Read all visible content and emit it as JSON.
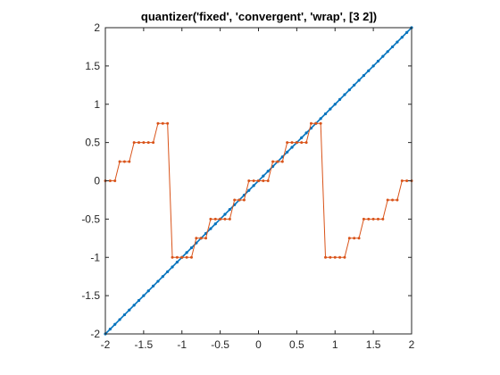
{
  "chart_data": {
    "type": "line",
    "title": "quantizer('fixed', 'convergent', 'wrap', [3  2])",
    "xlabel": "",
    "ylabel": "",
    "xlim": [
      -2,
      2
    ],
    "ylim": [
      -2,
      2
    ],
    "xticks": [
      -2,
      -1.5,
      -1,
      -0.5,
      0,
      0.5,
      1,
      1.5,
      2
    ],
    "yticks": [
      -2,
      -1.5,
      -1,
      -0.5,
      0,
      0.5,
      1,
      1.5,
      2
    ],
    "xtick_labels": [
      "-2",
      "-1.5",
      "-1",
      "-0.5",
      "0",
      "0.5",
      "1",
      "1.5",
      "2"
    ],
    "ytick_labels": [
      "-2",
      "-1.5",
      "-1",
      "-0.5",
      "0",
      "0.5",
      "1",
      "1.5",
      "2"
    ],
    "x_step": 0.0625,
    "series": [
      {
        "kind": "identity",
        "color": "#0072BD",
        "marker": "dot"
      },
      {
        "kind": "quantized",
        "color": "#D95319",
        "marker": "dot",
        "quant_step": 0.25,
        "wrap_range": [
          -1,
          1
        ]
      }
    ],
    "grid": false,
    "legend": "none"
  }
}
